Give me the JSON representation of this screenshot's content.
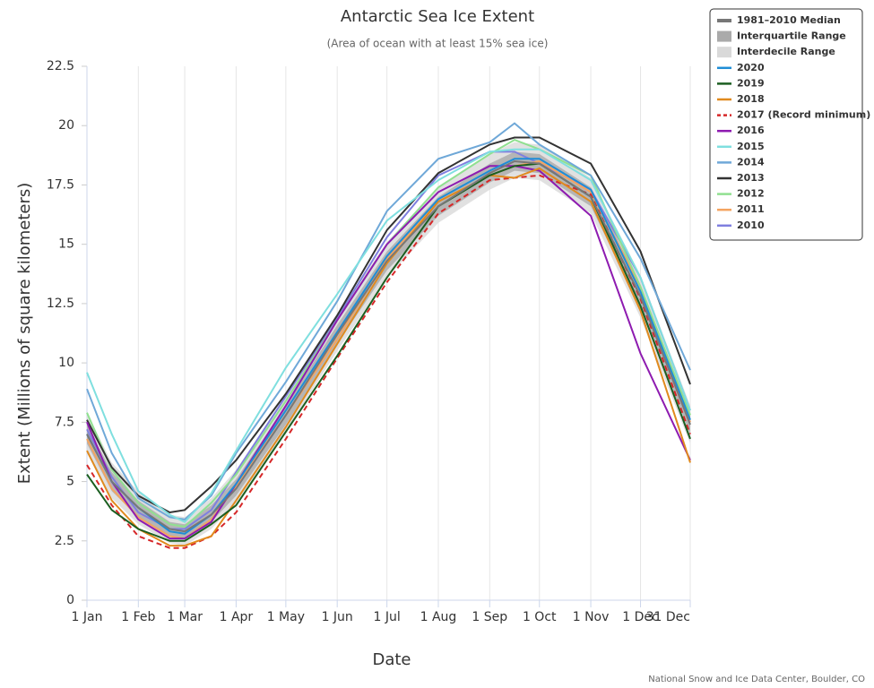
{
  "chart_data": {
    "type": "line",
    "title": "Antarctic Sea Ice Extent",
    "subtitle": "(Area of ocean with at least 15% sea ice)",
    "x_label": "Date",
    "y_label": "Extent (Millions of square kilometers)",
    "source": "National Snow and Ice Data Center, Boulder, CO",
    "x": [
      0,
      15,
      31,
      50,
      59,
      75,
      90,
      120,
      151,
      181,
      212,
      243,
      258,
      273,
      304,
      334,
      364
    ],
    "xlim": [
      0,
      364
    ],
    "xticks": [
      {
        "value": 0,
        "label": "1 Jan"
      },
      {
        "value": 31,
        "label": "1 Feb"
      },
      {
        "value": 59,
        "label": "1 Mar"
      },
      {
        "value": 90,
        "label": "1 Apr"
      },
      {
        "value": 120,
        "label": "1 May"
      },
      {
        "value": 151,
        "label": "1 Jun"
      },
      {
        "value": 181,
        "label": "1 Jul"
      },
      {
        "value": 212,
        "label": "1 Aug"
      },
      {
        "value": 243,
        "label": "1 Sep"
      },
      {
        "value": 273,
        "label": "1 Oct"
      },
      {
        "value": 304,
        "label": "1 Nov"
      },
      {
        "value": 334,
        "label": "1 Dec"
      },
      {
        "value": 364,
        "label": "31 Dec"
      }
    ],
    "ylim": [
      0,
      22.5
    ],
    "yticks": [
      0,
      2.5,
      5,
      7.5,
      10,
      12.5,
      15,
      17.5,
      20,
      22.5
    ],
    "grid": "x",
    "legend": "outside-top-right",
    "series": [
      {
        "name": "1981–2010 Median",
        "color": "#777777",
        "kind": "line",
        "values": [
          7.0,
          5.0,
          3.9,
          3.0,
          2.9,
          3.6,
          4.7,
          7.8,
          11.2,
          14.3,
          16.6,
          18.0,
          18.5,
          18.4,
          17.0,
          12.8,
          7.4
        ]
      },
      {
        "name": "Interquartile Range",
        "color": "#aaaaaa",
        "kind": "range",
        "low": [
          6.6,
          4.6,
          3.5,
          2.7,
          2.6,
          3.3,
          4.4,
          7.4,
          10.8,
          13.9,
          16.2,
          17.6,
          18.1,
          18.0,
          16.6,
          12.3,
          7.0
        ],
        "high": [
          7.4,
          5.4,
          4.2,
          3.3,
          3.2,
          4.0,
          5.1,
          8.2,
          11.6,
          14.7,
          17.0,
          18.4,
          18.9,
          18.8,
          17.4,
          13.3,
          7.8
        ]
      },
      {
        "name": "Interdecile Range",
        "color": "#d9d9d9",
        "kind": "range",
        "low": [
          6.2,
          4.3,
          3.2,
          2.4,
          2.3,
          3.0,
          4.1,
          7.1,
          10.5,
          13.6,
          15.9,
          17.3,
          17.8,
          17.7,
          16.3,
          11.9,
          6.6
        ],
        "high": [
          7.9,
          5.8,
          4.6,
          3.6,
          3.5,
          4.3,
          5.5,
          8.6,
          12.0,
          15.1,
          17.4,
          18.8,
          19.3,
          19.2,
          17.8,
          13.7,
          8.2
        ]
      },
      {
        "name": "2020",
        "color": "#1f8dd6",
        "kind": "line",
        "values": [
          7.0,
          5.0,
          3.9,
          2.9,
          2.8,
          3.6,
          4.9,
          8.0,
          11.3,
          14.5,
          16.9,
          18.1,
          18.6,
          18.6,
          17.3,
          13.0,
          7.6
        ]
      },
      {
        "name": "2019",
        "color": "#1b5e20",
        "kind": "line",
        "values": [
          5.3,
          3.8,
          3.0,
          2.5,
          2.5,
          3.2,
          4.0,
          7.1,
          10.3,
          13.6,
          16.6,
          17.9,
          18.3,
          18.4,
          17.0,
          12.4,
          6.8
        ]
      },
      {
        "name": "2018",
        "color": "#e08a1e",
        "kind": "line",
        "values": [
          6.3,
          4.2,
          3.0,
          2.3,
          2.3,
          2.7,
          4.2,
          7.3,
          10.8,
          14.2,
          16.8,
          17.9,
          17.8,
          18.2,
          16.8,
          12.2,
          5.8
        ]
      },
      {
        "name": "2017 (Record minimum)",
        "color": "#d62728",
        "kind": "line",
        "dashed": true,
        "values": [
          5.7,
          4.0,
          2.7,
          2.2,
          2.2,
          2.7,
          3.7,
          6.8,
          10.2,
          13.4,
          16.3,
          17.7,
          17.8,
          17.9,
          17.1,
          12.7,
          7.0
        ]
      },
      {
        "name": "2016",
        "color": "#8e1bb0",
        "kind": "line",
        "values": [
          7.5,
          5.0,
          3.4,
          2.6,
          2.6,
          3.3,
          4.9,
          8.2,
          11.8,
          15.0,
          17.2,
          18.3,
          18.3,
          18.1,
          16.2,
          10.4,
          5.9
        ]
      },
      {
        "name": "2015",
        "color": "#7fdfdf",
        "kind": "line",
        "values": [
          9.6,
          7.0,
          4.6,
          3.6,
          3.3,
          4.5,
          6.3,
          9.8,
          12.9,
          16.0,
          17.7,
          18.9,
          19.0,
          19.0,
          17.7,
          13.6,
          8.0
        ]
      },
      {
        "name": "2014",
        "color": "#6fa8d8",
        "kind": "line",
        "values": [
          8.9,
          6.2,
          4.3,
          3.5,
          3.4,
          4.4,
          6.2,
          9.2,
          12.6,
          16.4,
          18.6,
          19.3,
          20.1,
          19.2,
          17.9,
          14.4,
          9.7
        ]
      },
      {
        "name": "2013",
        "color": "#333333",
        "kind": "line",
        "values": [
          7.6,
          5.6,
          4.4,
          3.7,
          3.8,
          4.8,
          5.9,
          8.7,
          12.0,
          15.6,
          18.0,
          19.2,
          19.5,
          19.5,
          18.4,
          14.7,
          9.1
        ]
      },
      {
        "name": "2012",
        "color": "#90e090",
        "kind": "line",
        "values": [
          7.9,
          5.5,
          4.1,
          3.2,
          3.1,
          4.1,
          5.3,
          8.4,
          11.8,
          15.0,
          17.4,
          18.8,
          19.4,
          19.0,
          17.9,
          13.2,
          7.8
        ]
      },
      {
        "name": "2011",
        "color": "#f4a460",
        "kind": "line",
        "values": [
          6.8,
          4.7,
          3.5,
          2.7,
          2.6,
          3.4,
          4.8,
          7.8,
          11.0,
          14.4,
          16.8,
          17.9,
          18.3,
          18.5,
          17.2,
          13.2,
          7.5
        ]
      },
      {
        "name": "2010",
        "color": "#7f7fdf",
        "kind": "line",
        "values": [
          7.2,
          5.2,
          3.7,
          3.0,
          3.0,
          3.8,
          5.4,
          8.6,
          11.9,
          15.3,
          17.9,
          18.9,
          18.9,
          18.4,
          17.3,
          13.6,
          8.0
        ]
      }
    ]
  }
}
